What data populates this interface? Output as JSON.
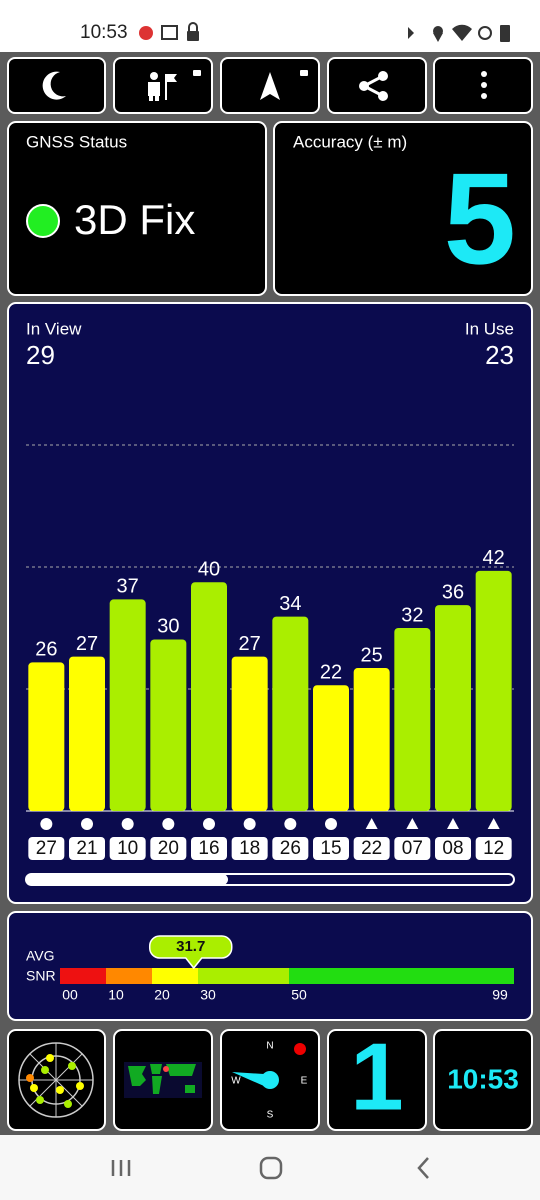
{
  "status_bar": {
    "time": "10:53"
  },
  "gnss_status": {
    "label": "GNSS Status",
    "value": "3D Fix"
  },
  "accuracy": {
    "label": "Accuracy (± m)",
    "value": 5
  },
  "satellites": {
    "in_view_label": "In View",
    "in_view": 29,
    "in_use_label": "In Use",
    "in_use": 23
  },
  "chart_data": {
    "type": "bar",
    "categories": [
      "27",
      "21",
      "10",
      "20",
      "16",
      "18",
      "26",
      "15",
      "22",
      "07",
      "08",
      "12"
    ],
    "values": [
      26,
      27,
      37,
      30,
      40,
      27,
      34,
      22,
      25,
      32,
      36,
      42
    ],
    "colors": [
      "#ffff00",
      "#ffff00",
      "#aaee00",
      "#aaee00",
      "#aaee00",
      "#ffff00",
      "#aaee00",
      "#ffff00",
      "#ffff00",
      "#aaee00",
      "#aaee00",
      "#aaee00"
    ],
    "markers": [
      "circle",
      "circle",
      "circle",
      "circle",
      "circle",
      "circle",
      "circle",
      "circle",
      "triangle",
      "triangle",
      "triangle",
      "triangle"
    ],
    "ylim": [
      0,
      64
    ],
    "yticks": [
      21.33,
      42.67,
      64
    ],
    "grid": true
  },
  "snr": {
    "label_top": "AVG",
    "label_bottom": "SNR",
    "avg": 31.7,
    "ticks": [
      {
        "value": 0,
        "label": "00"
      },
      10,
      20,
      30,
      50,
      99
    ],
    "colors": [
      "#ee1111",
      "#ff8800",
      "#ffff00",
      "#aaee00",
      "#22dd11"
    ]
  },
  "tiles": {
    "compass": {
      "north": "N",
      "east": "E",
      "south": "S",
      "west": "W"
    },
    "count": 1,
    "clock": "10:53"
  }
}
